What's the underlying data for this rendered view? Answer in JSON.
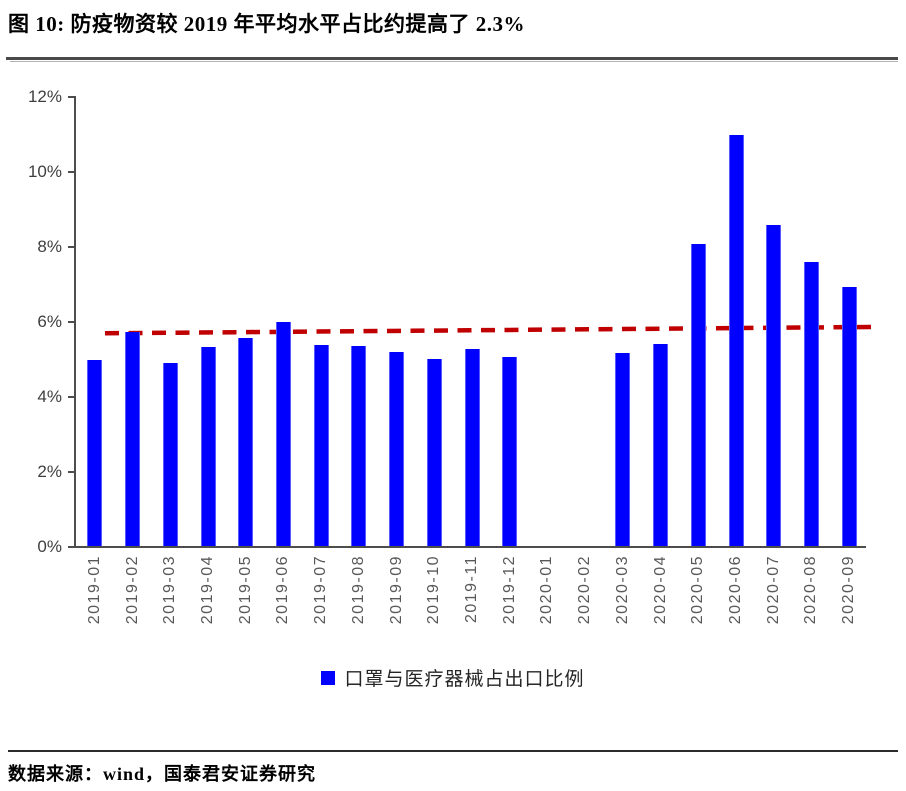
{
  "title": "图 10:  防疫物资较 2019 年平均水平占比约提高了 2.3%",
  "source": "数据来源：wind，国泰君安证券研究",
  "legend": {
    "label": "口罩与医疗器械占出口比例",
    "marker_color": "#0000fe"
  },
  "colors": {
    "bar": "#0000fe",
    "trendline": "#c00000",
    "axis": "#4d4d4d",
    "y_label": "#3f3f3f",
    "x_label": "#595959"
  },
  "chart_data": {
    "type": "bar",
    "title": "图 10:  防疫物资较 2019 年平均水平占比约提高了 2.3%",
    "xlabel": "",
    "ylabel": "",
    "ylim": [
      0,
      12
    ],
    "y_tick_values": [
      0,
      2,
      4,
      6,
      8,
      10,
      12
    ],
    "y_tick_labels": [
      "0%",
      "2%",
      "4%",
      "6%",
      "8%",
      "10%",
      "12%"
    ],
    "grid": false,
    "legend_position": "bottom",
    "categories": [
      "2019-01",
      "2019-02",
      "2019-03",
      "2019-04",
      "2019-05",
      "2019-06",
      "2019-07",
      "2019-08",
      "2019-09",
      "2019-10",
      "2019-11",
      "2019-12",
      "2020-01",
      "2020-02",
      "2020-03",
      "2020-04",
      "2020-05",
      "2020-06",
      "2020-07",
      "2020-08",
      "2020-09"
    ],
    "series": [
      {
        "name": "口罩与医疗器械占出口比例",
        "color": "#0000fe",
        "values": [
          4.95,
          5.72,
          4.88,
          5.32,
          5.55,
          5.97,
          5.35,
          5.34,
          5.18,
          5.0,
          5.26,
          5.03,
          null,
          null,
          5.16,
          5.39,
          8.05,
          10.97,
          8.56,
          7.57,
          6.92
        ]
      }
    ],
    "trendline": {
      "type": "linear",
      "style": "dashed",
      "color": "#c00000",
      "start_value": 5.7,
      "end_value": 5.87
    }
  }
}
